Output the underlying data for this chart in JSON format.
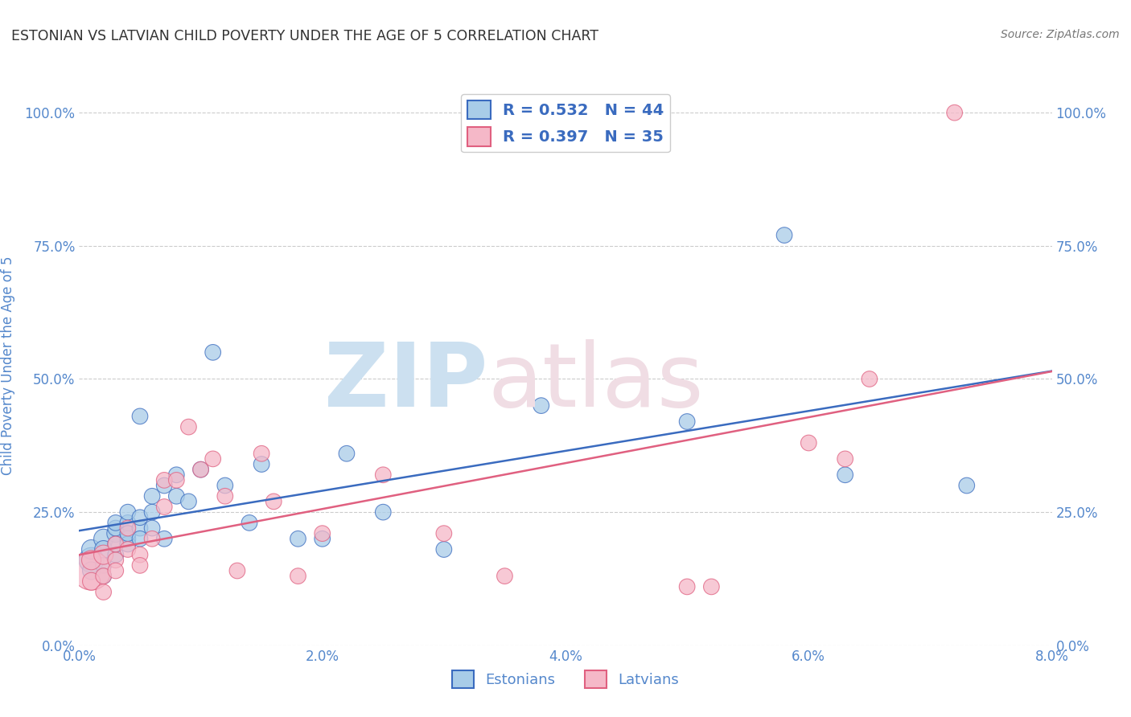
{
  "title": "ESTONIAN VS LATVIAN CHILD POVERTY UNDER THE AGE OF 5 CORRELATION CHART",
  "source": "Source: ZipAtlas.com",
  "ylabel": "Child Poverty Under the Age of 5",
  "xlim": [
    0.0,
    0.08
  ],
  "ylim": [
    0.0,
    1.05
  ],
  "yticks": [
    0.0,
    0.25,
    0.5,
    0.75,
    1.0
  ],
  "xticks": [
    0.0,
    0.02,
    0.04,
    0.06,
    0.08
  ],
  "estonian_color": "#a8cce8",
  "latvian_color": "#f5b8c8",
  "line_estonian_color": "#3a6bbf",
  "line_latvian_color": "#e06080",
  "R_estonian": 0.532,
  "N_estonian": 44,
  "R_latvian": 0.397,
  "N_latvian": 35,
  "background_color": "#ffffff",
  "grid_color": "#cccccc",
  "axis_label_color": "#5588cc",
  "tick_color": "#5588cc",
  "estonian_x": [
    0.001,
    0.001,
    0.001,
    0.002,
    0.002,
    0.002,
    0.002,
    0.003,
    0.003,
    0.003,
    0.003,
    0.003,
    0.004,
    0.004,
    0.004,
    0.004,
    0.004,
    0.005,
    0.005,
    0.005,
    0.005,
    0.006,
    0.006,
    0.006,
    0.007,
    0.007,
    0.008,
    0.008,
    0.009,
    0.01,
    0.011,
    0.012,
    0.014,
    0.015,
    0.018,
    0.02,
    0.022,
    0.025,
    0.03,
    0.038,
    0.05,
    0.058,
    0.063,
    0.073
  ],
  "estonian_y": [
    0.16,
    0.18,
    0.14,
    0.2,
    0.18,
    0.15,
    0.13,
    0.21,
    0.17,
    0.22,
    0.19,
    0.23,
    0.2,
    0.23,
    0.19,
    0.25,
    0.21,
    0.22,
    0.24,
    0.2,
    0.43,
    0.25,
    0.28,
    0.22,
    0.3,
    0.2,
    0.32,
    0.28,
    0.27,
    0.33,
    0.55,
    0.3,
    0.23,
    0.34,
    0.2,
    0.2,
    0.36,
    0.25,
    0.18,
    0.45,
    0.42,
    0.77,
    0.32,
    0.3
  ],
  "estonian_sizes": [
    500,
    300,
    250,
    300,
    250,
    200,
    200,
    250,
    200,
    200,
    200,
    200,
    200,
    200,
    200,
    200,
    200,
    200,
    200,
    200,
    200,
    200,
    200,
    200,
    200,
    200,
    200,
    200,
    200,
    200,
    200,
    200,
    200,
    200,
    200,
    200,
    200,
    200,
    200,
    200,
    200,
    200,
    200,
    200
  ],
  "latvian_x": [
    0.001,
    0.001,
    0.001,
    0.002,
    0.002,
    0.002,
    0.003,
    0.003,
    0.003,
    0.004,
    0.004,
    0.005,
    0.005,
    0.006,
    0.007,
    0.007,
    0.008,
    0.009,
    0.01,
    0.011,
    0.012,
    0.013,
    0.015,
    0.016,
    0.018,
    0.02,
    0.025,
    0.03,
    0.035,
    0.05,
    0.052,
    0.06,
    0.063,
    0.065,
    0.072
  ],
  "latvian_y": [
    0.14,
    0.16,
    0.12,
    0.17,
    0.13,
    0.1,
    0.16,
    0.14,
    0.19,
    0.18,
    0.22,
    0.17,
    0.15,
    0.2,
    0.26,
    0.31,
    0.31,
    0.41,
    0.33,
    0.35,
    0.28,
    0.14,
    0.36,
    0.27,
    0.13,
    0.21,
    0.32,
    0.21,
    0.13,
    0.11,
    0.11,
    0.38,
    0.35,
    0.5,
    1.0
  ],
  "latvian_sizes": [
    1200,
    300,
    250,
    300,
    200,
    200,
    200,
    200,
    200,
    200,
    200,
    200,
    200,
    200,
    200,
    200,
    200,
    200,
    200,
    200,
    200,
    200,
    200,
    200,
    200,
    200,
    200,
    200,
    200,
    200,
    200,
    200,
    200,
    200,
    200
  ]
}
